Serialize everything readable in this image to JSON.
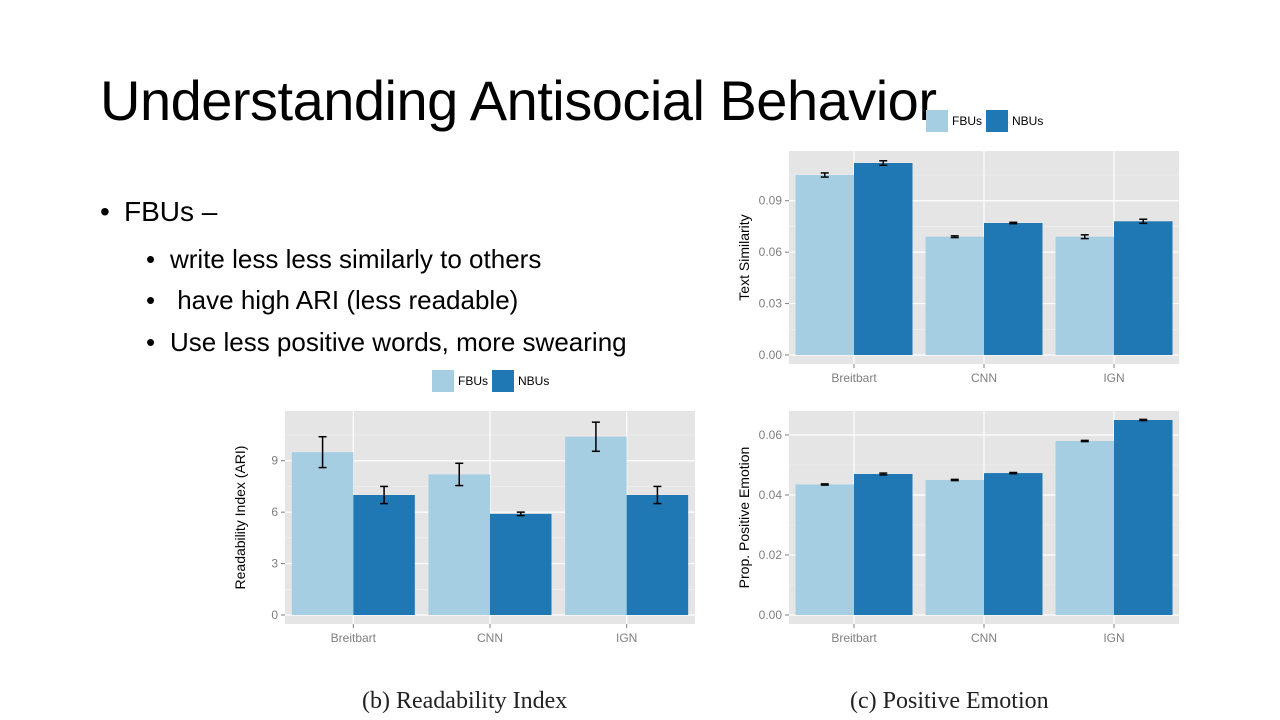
{
  "slide": {
    "title": "Understanding Antisocial Behavior",
    "bullets": {
      "main": "FBUs –",
      "subs": [
        "write less less similarly to others",
        " have high ARI (less readable)",
        "Use less positive words, more swearing"
      ]
    }
  },
  "colors": {
    "FBUs": "#a6cee3",
    "NBUs": "#1f78b4"
  },
  "chart_data": [
    {
      "type": "bar",
      "title": "",
      "caption": "",
      "categories": [
        "Breitbart",
        "CNN",
        "IGN"
      ],
      "series": [
        {
          "name": "FBUs",
          "values": [
            0.105,
            0.069,
            0.069
          ],
          "errors": [
            0.0012,
            0.0005,
            0.0011
          ]
        },
        {
          "name": "NBUs",
          "values": [
            0.112,
            0.077,
            0.078
          ],
          "errors": [
            0.0013,
            0.0004,
            0.0012
          ]
        }
      ],
      "xlabel": "",
      "ylabel": "Text Similarity",
      "ylim": [
        0,
        0.119
      ],
      "yticks": [
        0.0,
        0.03,
        0.06,
        0.09
      ],
      "ytick_labels": [
        "0.00",
        "0.03",
        "0.06",
        "0.09"
      ],
      "legend": [
        "FBUs",
        "NBUs"
      ],
      "legend_position": "top",
      "grid": true
    },
    {
      "type": "bar",
      "title": "",
      "caption": "(b) Readability Index",
      "categories": [
        "Breitbart",
        "CNN",
        "IGN"
      ],
      "series": [
        {
          "name": "FBUs",
          "values": [
            9.5,
            8.2,
            10.4
          ],
          "errors": [
            0.9,
            0.65,
            0.85
          ]
        },
        {
          "name": "NBUs",
          "values": [
            7.0,
            5.9,
            7.0
          ],
          "errors": [
            0.5,
            0.1,
            0.5
          ]
        }
      ],
      "xlabel": "",
      "ylabel": "Readability Index (ARI)",
      "ylim": [
        0,
        11.9
      ],
      "yticks": [
        0,
        3,
        6,
        9
      ],
      "ytick_labels": [
        "0",
        "3",
        "6",
        "9"
      ],
      "legend": [
        "FBUs",
        "NBUs"
      ],
      "legend_position": "top",
      "grid": true
    },
    {
      "type": "bar",
      "title": "",
      "caption": "(c) Positive Emotion",
      "categories": [
        "Breitbart",
        "CNN",
        "IGN"
      ],
      "series": [
        {
          "name": "FBUs",
          "values": [
            0.0435,
            0.045,
            0.058
          ],
          "errors": [
            0.0002,
            0.0002,
            0.0002
          ]
        },
        {
          "name": "NBUs",
          "values": [
            0.047,
            0.0473,
            0.065
          ],
          "errors": [
            0.0003,
            0.0002,
            0.0002
          ]
        }
      ],
      "xlabel": "",
      "ylabel": "Prop. Positive Emotion",
      "ylim": [
        0,
        0.068
      ],
      "yticks": [
        0.0,
        0.02,
        0.04,
        0.06
      ],
      "ytick_labels": [
        "0.00",
        "0.02",
        "0.04",
        "0.06"
      ],
      "legend": [],
      "legend_position": "none",
      "grid": true
    }
  ]
}
